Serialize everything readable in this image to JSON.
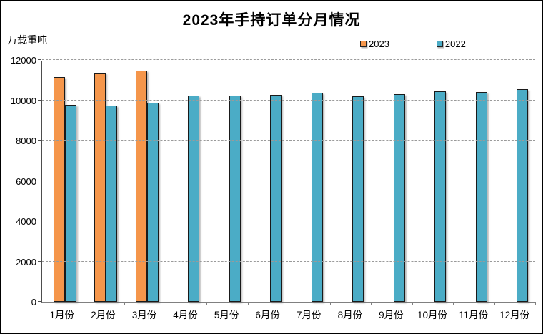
{
  "window": {
    "background": "#ffffff",
    "border_color": "#000000"
  },
  "chart_data": {
    "type": "bar",
    "title": "2023年手持订单分月情况",
    "ylabel": "万载重吨",
    "xlabel": "",
    "categories": [
      "1月份",
      "2月份",
      "3月份",
      "4月份",
      "5月份",
      "6月份",
      "7月份",
      "8月份",
      "9月份",
      "10月份",
      "11月份",
      "12月份"
    ],
    "series": [
      {
        "name": "2023",
        "color": "#F5964B",
        "border_color": "#1a1a1a",
        "values": [
          11152,
          11368,
          11452,
          null,
          null,
          null,
          null,
          null,
          null,
          null,
          null,
          null
        ]
      },
      {
        "name": "2022",
        "color": "#4BACC6",
        "border_color": "#1a1a1a",
        "values": [
          9784,
          9752,
          9886,
          10247,
          10217,
          10274,
          10366,
          10206,
          10312,
          10458,
          10397,
          10557
        ]
      }
    ],
    "ylim": [
      0,
      12000
    ],
    "yticks": [
      0,
      2000,
      4000,
      6000,
      8000,
      10000,
      12000
    ],
    "grid": true,
    "gridline_style": "dashed",
    "gridline_color": "#9a9a9a",
    "legend_position": "top-right"
  }
}
